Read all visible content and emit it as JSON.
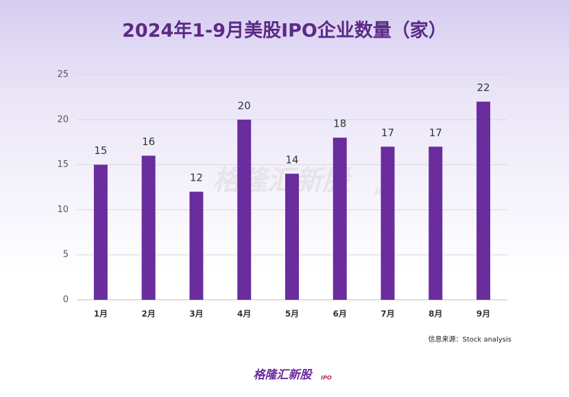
{
  "chart_data": {
    "type": "bar",
    "title": "2024年1-9月美股IPO企业数量（家）",
    "categories": [
      "1月",
      "2月",
      "3月",
      "4月",
      "5月",
      "6月",
      "7月",
      "8月",
      "9月"
    ],
    "values": [
      15,
      16,
      12,
      20,
      14,
      18,
      17,
      17,
      22
    ],
    "color": "#6b2c9e",
    "ylim": [
      0,
      25
    ],
    "yticks": [
      0,
      5,
      10,
      15,
      20,
      25
    ],
    "grid": true,
    "source": "信息来源：Stock analysis",
    "brand": "格隆汇新股",
    "brand_tag": "IPO"
  }
}
